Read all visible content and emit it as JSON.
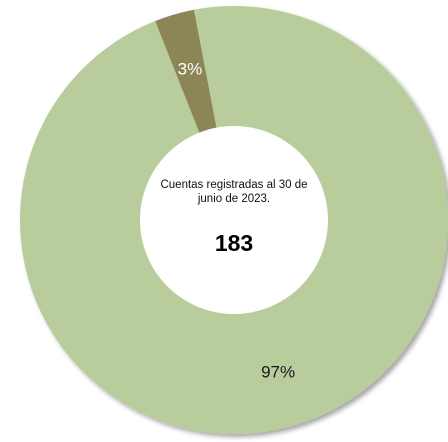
{
  "chart_data": {
    "type": "pie",
    "style": "donut",
    "categories": [
      "",
      ""
    ],
    "values": [
      97,
      3
    ],
    "data_labels": [
      "97%",
      "3%"
    ],
    "colors": [
      "#b8cc9c",
      "#8c8656"
    ],
    "center_text": "Cuentas registradas al 30 de junio de 2023.",
    "center_value": "183",
    "legend": "none"
  }
}
